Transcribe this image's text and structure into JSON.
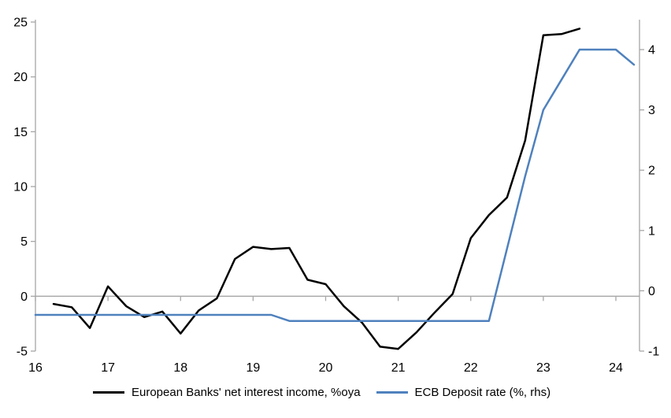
{
  "chart_data": {
    "type": "line",
    "title": "",
    "x_axis": {
      "tick_values": [
        16,
        17,
        18,
        19,
        20,
        21,
        22,
        23,
        24
      ],
      "tick_labels": [
        "16",
        "17",
        "18",
        "19",
        "20",
        "21",
        "22",
        "23",
        "24"
      ],
      "range": [
        16,
        24.33
      ]
    },
    "left_axis": {
      "tick_values": [
        -5,
        0,
        5,
        10,
        15,
        20,
        25
      ],
      "tick_labels": [
        "-5",
        "0",
        "5",
        "10",
        "15",
        "20",
        "25"
      ],
      "range": [
        -5,
        25
      ]
    },
    "right_axis": {
      "tick_values": [
        -1,
        0,
        1,
        2,
        3,
        4
      ],
      "tick_labels": [
        "-1",
        "0",
        "1",
        "2",
        "3",
        "4"
      ],
      "range": [
        -1,
        4.5
      ]
    },
    "grid": {
      "zero_line_only": true,
      "legend_position": "bottom"
    },
    "colors": {
      "axis": "#A6A6A6",
      "text": "#000000",
      "background": "#FFFFFF",
      "series_nii": "#000000",
      "series_ecb": "#4F81BD"
    },
    "series": [
      {
        "name": "European Banks' net interest income, %oya",
        "color": "#000000",
        "axis": "left",
        "x": [
          16.25,
          16.5,
          16.75,
          17,
          17.25,
          17.5,
          17.75,
          18,
          18.25,
          18.5,
          18.75,
          19,
          19.25,
          19.5,
          19.75,
          20,
          20.25,
          20.5,
          20.75,
          21,
          21.25,
          21.5,
          21.75,
          22,
          22.25,
          22.5,
          22.75,
          23,
          23.25,
          23.5
        ],
        "values": [
          -0.7,
          -1.0,
          -2.9,
          0.9,
          -0.9,
          -1.9,
          -1.4,
          -3.4,
          -1.3,
          -0.2,
          3.4,
          4.5,
          4.3,
          4.4,
          1.5,
          1.1,
          -0.9,
          -2.4,
          -4.6,
          -4.8,
          -3.3,
          -1.5,
          0.2,
          5.3,
          7.4,
          9.0,
          14.2,
          23.8,
          23.9,
          24.4
        ]
      },
      {
        "name": "ECB Deposit rate (%, rhs)",
        "color": "#4F81BD",
        "axis": "right",
        "x": [
          16,
          16.25,
          16.5,
          16.75,
          17,
          17.25,
          17.5,
          17.75,
          18,
          18.25,
          18.5,
          18.75,
          19,
          19.25,
          19.5,
          19.75,
          20,
          20.25,
          20.5,
          20.75,
          21,
          21.25,
          21.5,
          21.75,
          22,
          22.25,
          22.5,
          22.75,
          23,
          23.25,
          23.5,
          23.75,
          24,
          24.25
        ],
        "values": [
          -0.4,
          -0.4,
          -0.4,
          -0.4,
          -0.4,
          -0.4,
          -0.4,
          -0.4,
          -0.4,
          -0.4,
          -0.4,
          -0.4,
          -0.4,
          -0.4,
          -0.5,
          -0.5,
          -0.5,
          -0.5,
          -0.5,
          -0.5,
          -0.5,
          -0.5,
          -0.5,
          -0.5,
          -0.5,
          -0.5,
          0.7,
          1.9,
          3.0,
          3.5,
          4.0,
          4.0,
          4.0,
          3.75
        ]
      }
    ],
    "legend": {
      "entries": [
        {
          "label": "European Banks' net interest income, %oya",
          "color": "#000000"
        },
        {
          "label": "ECB Deposit rate (%, rhs)",
          "color": "#4F81BD"
        }
      ]
    }
  }
}
